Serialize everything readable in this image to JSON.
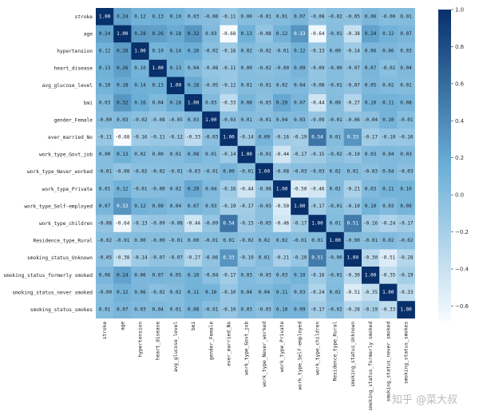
{
  "chart_data": {
    "type": "heatmap",
    "title": "",
    "labels": [
      "stroke",
      "age",
      "hypertension",
      "heart_disease",
      "avg_glucose_level",
      "bmi",
      "gender_Female",
      "ever_married_No",
      "work_type_Govt_job",
      "work_type_Never_worked",
      "work_type_Private",
      "work_type_Self-employed",
      "work_type_children",
      "Residence_type_Rural",
      "smoking_status_Unknown",
      "smoking_status_formerly smoked",
      "smoking_status_never smoked",
      "smoking_status_smokes"
    ],
    "values": [
      [
        1.0,
        0.24,
        0.12,
        0.13,
        0.1,
        0.03,
        -0.0,
        -0.11,
        0.0,
        -0.01,
        0.01,
        0.07,
        -0.08,
        -0.02,
        -0.05,
        0.06,
        -0.0,
        0.01
      ],
      [
        0.24,
        1.0,
        0.28,
        0.26,
        0.18,
        0.32,
        0.03,
        -0.68,
        0.13,
        -0.08,
        0.12,
        0.33,
        -0.64,
        -0.01,
        -0.38,
        0.24,
        0.12,
        0.07
      ],
      [
        0.12,
        0.28,
        1.0,
        0.1,
        0.14,
        0.16,
        -0.02,
        -0.16,
        0.02,
        -0.02,
        -0.01,
        0.12,
        -0.13,
        0.0,
        -0.14,
        0.06,
        0.06,
        0.03
      ],
      [
        0.13,
        0.26,
        0.1,
        1.0,
        0.13,
        0.04,
        -0.08,
        -0.11,
        0.0,
        -0.02,
        -0.0,
        0.09,
        -0.09,
        -0.0,
        -0.07,
        0.07,
        -0.02,
        0.04
      ],
      [
        0.1,
        0.18,
        0.14,
        0.13,
        1.0,
        0.18,
        -0.05,
        -0.12,
        0.01,
        -0.01,
        0.02,
        0.04,
        -0.08,
        -0.01,
        -0.07,
        0.05,
        0.02,
        0.01
      ],
      [
        0.03,
        0.32,
        0.16,
        0.04,
        0.18,
        1.0,
        0.03,
        -0.33,
        0.08,
        -0.03,
        0.2,
        0.07,
        -0.44,
        0.0,
        -0.27,
        0.1,
        0.11,
        0.08
      ],
      [
        -0.0,
        0.03,
        -0.02,
        -0.08,
        -0.05,
        0.03,
        1.0,
        -0.03,
        0.01,
        -0.01,
        0.04,
        0.03,
        -0.09,
        -0.01,
        -0.06,
        -0.04,
        0.1,
        -0.01
      ],
      [
        -0.11,
        -0.68,
        -0.16,
        -0.11,
        -0.12,
        -0.33,
        -0.03,
        1.0,
        -0.14,
        0.09,
        -0.16,
        -0.19,
        0.54,
        0.01,
        0.33,
        -0.17,
        -0.1,
        -0.1
      ],
      [
        0.0,
        0.13,
        0.02,
        0.0,
        0.01,
        0.08,
        0.01,
        -0.14,
        1.0,
        -0.01,
        -0.44,
        -0.17,
        -0.15,
        -0.02,
        -0.1,
        0.03,
        0.04,
        0.03
      ],
      [
        -0.01,
        -0.08,
        -0.02,
        -0.02,
        -0.01,
        -0.03,
        -0.01,
        0.09,
        -0.01,
        1.0,
        -0.08,
        -0.03,
        -0.03,
        0.02,
        0.01,
        -0.03,
        0.04,
        -0.03
      ],
      [
        0.01,
        0.12,
        -0.01,
        -0.0,
        0.02,
        0.2,
        0.04,
        -0.16,
        -0.44,
        -0.08,
        1.0,
        -0.5,
        -0.46,
        0.02,
        -0.21,
        0.03,
        0.11,
        0.1
      ],
      [
        0.07,
        0.33,
        0.12,
        0.09,
        0.04,
        0.07,
        0.03,
        -0.19,
        -0.17,
        -0.03,
        -0.5,
        1.0,
        -0.17,
        -0.01,
        -0.1,
        0.1,
        0.03,
        0.09
      ],
      [
        -0.08,
        -0.64,
        -0.13,
        -0.09,
        -0.08,
        -0.44,
        -0.09,
        0.54,
        -0.15,
        -0.03,
        -0.46,
        -0.17,
        1.0,
        0.01,
        0.51,
        -0.16,
        -0.24,
        -0.17
      ],
      [
        -0.02,
        -0.01,
        0.0,
        -0.0,
        -0.01,
        0.0,
        -0.01,
        0.01,
        -0.02,
        0.02,
        0.02,
        -0.01,
        0.01,
        1.0,
        -0.0,
        -0.01,
        0.02,
        -0.02
      ],
      [
        -0.05,
        -0.38,
        -0.14,
        -0.07,
        -0.07,
        -0.27,
        -0.06,
        0.33,
        -0.1,
        0.01,
        -0.21,
        -0.1,
        0.51,
        -0.0,
        1.0,
        -0.3,
        -0.51,
        -0.28
      ],
      [
        0.06,
        0.24,
        0.06,
        0.07,
        0.05,
        0.1,
        -0.04,
        -0.17,
        0.03,
        -0.03,
        0.03,
        0.1,
        -0.16,
        -0.01,
        -0.3,
        1.0,
        -0.35,
        -0.19
      ],
      [
        -0.0,
        0.12,
        0.06,
        -0.02,
        0.02,
        0.11,
        0.1,
        -0.1,
        0.04,
        0.04,
        0.11,
        0.03,
        -0.24,
        0.02,
        -0.51,
        -0.35,
        1.0,
        -0.33
      ],
      [
        0.01,
        0.07,
        0.03,
        0.04,
        0.01,
        0.08,
        -0.01,
        -0.1,
        0.03,
        -0.03,
        0.1,
        0.09,
        -0.17,
        -0.02,
        -0.28,
        -0.19,
        -0.33,
        1.0
      ]
    ],
    "colorbar": {
      "ticks": [
        1.0,
        0.8,
        0.6,
        0.4,
        0.2,
        0.0,
        -0.2,
        -0.4,
        -0.6
      ],
      "range": [
        -0.68,
        1.0
      ]
    },
    "colors": {
      "low": "#f7fbff",
      "mid": "#6baed6",
      "high": "#08306b"
    }
  },
  "watermark": "知乎 @菜大叔"
}
